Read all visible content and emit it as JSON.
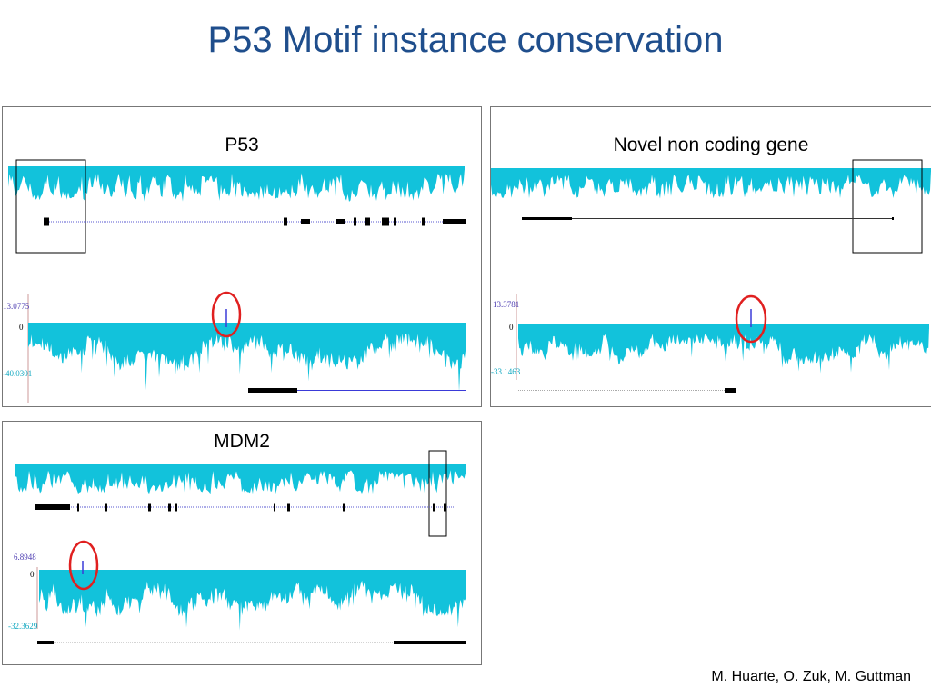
{
  "slide": {
    "title": "P53 Motif instance conservation",
    "credit": "M. Huarte, O. Zuk, M. Guttman"
  },
  "colors": {
    "title": "#1f4e8c",
    "conservation": "#12c2db",
    "highlight_circle": "#e02020",
    "motif_line": "#3a3ad8",
    "gene_model": "#000000"
  },
  "panels": {
    "p53": {
      "title": "P53",
      "axis_top": "13.0775",
      "axis_zero": "0",
      "axis_bottom": "-40.0301"
    },
    "novel": {
      "title": "Novel non coding gene",
      "axis_top": "13.3781",
      "axis_zero": "0",
      "axis_bottom": "-33.1463"
    },
    "mdm2": {
      "title": "MDM2",
      "axis_top": "6.8948",
      "axis_zero": "0",
      "axis_bottom": "-32.3629"
    }
  }
}
